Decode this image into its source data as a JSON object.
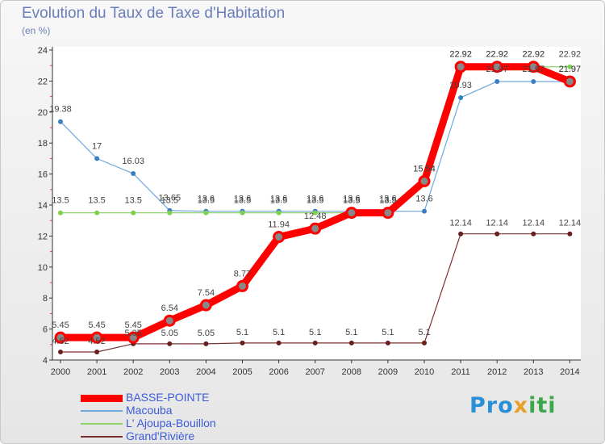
{
  "header": {
    "title": "Evolution du Taux de Taxe d'Habitation",
    "subtitle": "(en %)"
  },
  "logo": {
    "p1": "Pro",
    "p2": "x",
    "p3": "iti"
  },
  "chart_data": {
    "type": "line",
    "title": "Evolution du Taux de Taxe d'Habitation",
    "subtitle": "(en %)",
    "xlabel": "",
    "ylabel": "",
    "ylim": [
      4,
      24
    ],
    "yticks": [
      4,
      6,
      8,
      10,
      12,
      14,
      16,
      18,
      20,
      22,
      24
    ],
    "x": [
      "2000",
      "2001",
      "2002",
      "2003",
      "2004",
      "2005",
      "2006",
      "2007",
      "2008",
      "2009",
      "2010",
      "2011",
      "2012",
      "2013",
      "2014"
    ],
    "grid": false,
    "legend_position": "bottom-left",
    "series": [
      {
        "name": "BASSE-POINTE",
        "color": "#ff0000",
        "values": [
          5.45,
          5.45,
          5.45,
          6.54,
          7.54,
          8.77,
          11.94,
          12.48,
          13.5,
          13.5,
          15.54,
          22.92,
          22.92,
          22.92,
          21.97
        ]
      },
      {
        "name": "Macouba",
        "color": "#6fa8dc",
        "values": [
          19.38,
          17,
          16.03,
          13.65,
          13.6,
          13.6,
          13.6,
          13.6,
          13.6,
          13.6,
          13.6,
          20.93,
          21.97,
          21.97,
          21.97
        ]
      },
      {
        "name": "L' Ajoupa-Bouillon",
        "color": "#8fd36a",
        "values": [
          13.5,
          13.5,
          13.5,
          13.5,
          13.5,
          13.5,
          13.5,
          13.5,
          13.5,
          13.5,
          15.54,
          22.92,
          22.92,
          22.92,
          22.92
        ]
      },
      {
        "name": "Grand'Rivière",
        "color": "#7a3030",
        "values": [
          4.52,
          4.52,
          5.05,
          5.05,
          5.05,
          5.1,
          5.1,
          5.1,
          5.1,
          5.1,
          5.1,
          12.14,
          12.14,
          12.14,
          12.14
        ]
      }
    ]
  }
}
